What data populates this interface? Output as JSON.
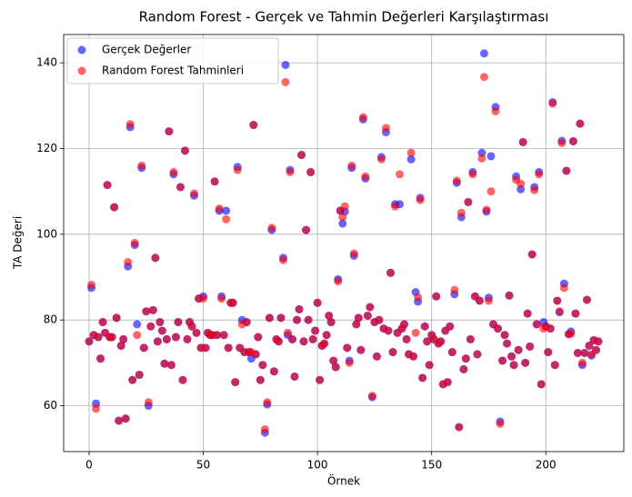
{
  "chart_data": {
    "type": "scatter",
    "title": "Random Forest - Gerçek ve Tahmin Değerleri Karşılaştırması",
    "x_label": "Örnek",
    "y_label": "TA Değeri",
    "xlim": [
      -11.15,
      234.15
    ],
    "ylim": [
      49.3,
      146.6
    ],
    "xticks": [
      0,
      50,
      100,
      150,
      200
    ],
    "yticks": [
      60,
      80,
      100,
      120,
      140
    ],
    "grid": true,
    "legend": "upper left",
    "alpha": 0.6,
    "x": [
      0,
      1,
      2,
      3,
      4,
      5,
      6,
      7,
      8,
      9,
      10,
      11,
      12,
      13,
      14,
      15,
      16,
      17,
      18,
      19,
      20,
      21,
      22,
      23,
      24,
      25,
      26,
      27,
      28,
      29,
      30,
      31,
      32,
      33,
      34,
      35,
      36,
      37,
      38,
      39,
      40,
      41,
      42,
      43,
      44,
      45,
      46,
      47,
      48,
      49,
      50,
      51,
      52,
      53,
      54,
      55,
      56,
      57,
      58,
      59,
      60,
      61,
      62,
      63,
      64,
      65,
      66,
      67,
      68,
      69,
      70,
      71,
      72,
      73,
      74,
      75,
      76,
      77,
      78,
      79,
      80,
      81,
      82,
      83,
      84,
      85,
      86,
      87,
      88,
      89,
      90,
      91,
      92,
      93,
      94,
      95,
      96,
      97,
      98,
      99,
      100,
      101,
      102,
      103,
      104,
      105,
      106,
      107,
      108,
      109,
      110,
      111,
      112,
      113,
      114,
      115,
      116,
      117,
      118,
      119,
      120,
      121,
      122,
      123,
      124,
      125,
      126,
      127,
      128,
      129,
      130,
      131,
      132,
      133,
      134,
      135,
      136,
      137,
      138,
      139,
      140,
      141,
      142,
      143,
      144,
      145,
      146,
      147,
      148,
      149,
      150,
      151,
      152,
      153,
      154,
      155,
      156,
      157,
      158,
      159,
      160,
      161,
      162,
      163,
      164,
      165,
      166,
      167,
      168,
      169,
      170,
      171,
      172,
      173,
      174,
      175,
      176,
      177,
      178,
      179,
      180,
      181,
      182,
      183,
      184,
      185,
      186,
      187,
      188,
      189,
      190,
      191,
      192,
      193,
      194,
      195,
      196,
      197,
      198,
      199,
      200,
      201,
      202,
      203,
      204,
      205,
      206,
      207,
      208,
      209,
      210,
      211,
      212,
      213,
      214,
      215,
      216,
      217,
      218,
      219,
      220,
      221,
      222,
      223
    ],
    "series": [
      {
        "name": "Gerçek Değerler",
        "color": "#0000ff",
        "values": [
          75,
          87.5,
          76.5,
          60.5,
          76,
          71,
          79.5,
          77,
          111.5,
          76,
          76,
          106.3,
          80.5,
          56.5,
          74,
          75.5,
          57,
          92.5,
          125,
          66,
          97.5,
          79,
          67.2,
          115.5,
          73.5,
          82,
          60,
          78.5,
          82.3,
          94.5,
          75,
          79.5,
          77.5,
          69.8,
          75.5,
          124,
          69.5,
          114,
          76,
          79.5,
          111,
          66,
          119.5,
          75.5,
          79.5,
          78.5,
          109,
          77,
          85,
          73.5,
          85.5,
          73.5,
          77,
          76.5,
          76.5,
          112.3,
          76.5,
          105.5,
          85.5,
          76.5,
          105.5,
          73.5,
          84,
          84,
          65.5,
          115.7,
          73.5,
          80,
          72.5,
          79.5,
          72.5,
          71,
          125.5,
          72,
          76,
          66,
          69.5,
          53.7,
          60.3,
          80.5,
          101,
          68,
          75.5,
          75,
          80.5,
          94.5,
          139.5,
          76.5,
          115,
          75.5,
          66.8,
          80,
          82.5,
          118.5,
          75,
          101,
          80,
          114.5,
          75.5,
          77.5,
          84,
          66,
          74,
          74.5,
          76.5,
          81,
          79.5,
          70.5,
          69,
          89.5,
          105.5,
          102.5,
          105.3,
          73.5,
          70.5,
          115.5,
          95,
          79,
          80.5,
          73,
          126.8,
          113,
          81,
          83,
          62,
          79.5,
          71.5,
          80,
          118,
          78,
          123.8,
          77.5,
          91,
          72.5,
          107,
          77,
          107,
          78,
          79,
          75.5,
          72,
          117.5,
          71.5,
          86.5,
          84.3,
          108.5,
          66.5,
          78.5,
          75,
          69.5,
          76.5,
          75.5,
          85.5,
          74.5,
          75,
          65,
          77.5,
          65.5,
          78.5,
          72.5,
          86,
          112,
          55,
          104,
          68.5,
          71,
          107.5,
          75.5,
          114.5,
          85.5,
          72,
          84.5,
          119,
          142.2,
          105.3,
          85.2,
          118.2,
          79,
          129.7,
          78,
          56.3,
          70.5,
          76.5,
          74.5,
          85.7,
          71.5,
          69.5,
          113.5,
          73,
          110.5,
          121.5,
          70,
          81.5,
          73.8,
          95.3,
          111,
          79,
          114.5,
          65,
          79.5,
          78.5,
          72.5,
          78,
          130.8,
          69.5,
          84.5,
          81.8,
          121.8,
          88.5,
          114.8,
          76.7,
          77.3,
          121.7,
          81.5,
          72.3,
          125.8,
          69.5,
          72.3,
          84.7,
          74,
          71.7,
          75.3,
          73,
          75
        ]
      },
      {
        "name": "Random Forest Tahminleri",
        "color": "#ff0000",
        "values": [
          75,
          88.2,
          76.5,
          59.3,
          76,
          71,
          79.5,
          77,
          111.5,
          76,
          76,
          106.3,
          80.5,
          56.5,
          74,
          75.5,
          57,
          93.5,
          125.7,
          66,
          98,
          76.5,
          67.2,
          116,
          73.5,
          82,
          60.8,
          78.5,
          82.3,
          94.5,
          75,
          79.5,
          77.5,
          69.8,
          75.5,
          124,
          69.5,
          114.5,
          76,
          79.5,
          111,
          66,
          119.5,
          75.5,
          79.5,
          78.5,
          109.5,
          77,
          85,
          73.5,
          85,
          73.5,
          77,
          76.5,
          76.5,
          112.3,
          76.5,
          106,
          85,
          76.5,
          103.5,
          73.5,
          84,
          84,
          65.5,
          115,
          73.5,
          79,
          72.5,
          79.5,
          72.5,
          72.5,
          125.5,
          72,
          76,
          66,
          69.5,
          54.5,
          60.8,
          80.5,
          101.5,
          68,
          75.5,
          75,
          80.5,
          94,
          135.5,
          77,
          114.5,
          75.5,
          66.8,
          80,
          82.5,
          118.5,
          75,
          101,
          80,
          114.5,
          75.5,
          77.5,
          84,
          66,
          74,
          74.5,
          76.5,
          81,
          79.5,
          70.5,
          69,
          89,
          105.5,
          104,
          106.5,
          73.5,
          70,
          116,
          95.5,
          79,
          80.5,
          73,
          127.3,
          113.5,
          81,
          83,
          62.3,
          79.5,
          71.5,
          80,
          117.5,
          78,
          124.8,
          77.5,
          91,
          72.5,
          106.5,
          77,
          114,
          78,
          79,
          75.5,
          72,
          119,
          71.5,
          77,
          85.3,
          108,
          66.5,
          78.5,
          75,
          69.5,
          76.5,
          75.5,
          85.5,
          74.5,
          75,
          65,
          77.5,
          65.5,
          78.5,
          72.5,
          87,
          112.5,
          55,
          105,
          68.5,
          71,
          107.5,
          75.5,
          114,
          85.5,
          72,
          84.5,
          117.7,
          136.7,
          105.7,
          84.5,
          110,
          79,
          128.7,
          78,
          55.8,
          70.5,
          76.5,
          74.5,
          85.7,
          71.5,
          69.5,
          112.7,
          73,
          111.8,
          121.5,
          70,
          81.5,
          73.8,
          95.3,
          110.3,
          79,
          114,
          65,
          78,
          78.5,
          72.5,
          78,
          130.5,
          69.5,
          84.5,
          82,
          121.3,
          87.5,
          114.8,
          76.7,
          76.8,
          121.7,
          81.5,
          72.3,
          125.8,
          70,
          72.3,
          84.7,
          74,
          72,
          75.3,
          73,
          75
        ]
      }
    ]
  }
}
